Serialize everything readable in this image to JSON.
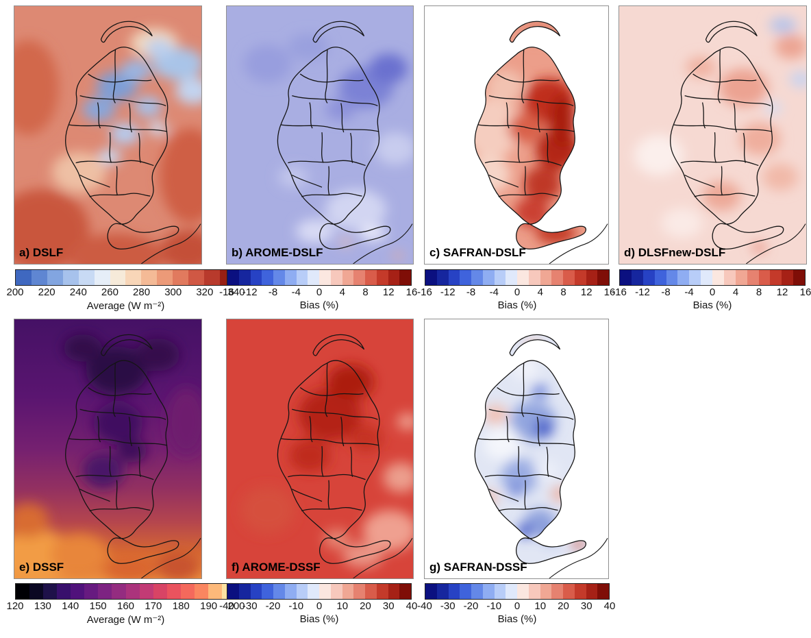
{
  "figure": {
    "panels": [
      {
        "id": "a",
        "label": "a) DSLF"
      },
      {
        "id": "b",
        "label": "b) AROME-DSLF"
      },
      {
        "id": "c",
        "label": "c) SAFRAN-DSLF"
      },
      {
        "id": "d",
        "label": "d) DLSFnew-DSLF"
      },
      {
        "id": "e",
        "label": "e) DSSF"
      },
      {
        "id": "f",
        "label": "f) AROME-DSSF"
      },
      {
        "id": "g",
        "label": "g) SAFRAN-DSSF"
      }
    ],
    "colorbars": [
      {
        "id": "cb-a",
        "label": "Average (W m⁻²)",
        "ticks": [
          "200",
          "220",
          "240",
          "260",
          "280",
          "300",
          "320",
          "340"
        ],
        "colors": [
          "#3f68c0",
          "#5f86d2",
          "#82a5e0",
          "#a7c2ec",
          "#c8daf4",
          "#e6eef8",
          "#f6ead9",
          "#f8d6b8",
          "#f4ba96",
          "#ec9a78",
          "#e17a5e",
          "#d05844",
          "#b83a2c",
          "#971f14"
        ]
      },
      {
        "id": "cb-b",
        "label": "Bias (%)",
        "ticks": [
          "-16",
          "-12",
          "-8",
          "-4",
          "0",
          "4",
          "8",
          "12",
          "16"
        ],
        "colors": [
          "#0b1080",
          "#16269e",
          "#2742c4",
          "#3f63dc",
          "#6488e8",
          "#8fadf2",
          "#b8cdf8",
          "#e0e9fb",
          "#fbe7e0",
          "#f7c8bc",
          "#f0a794",
          "#e68270",
          "#d95c4a",
          "#c43a2a",
          "#a62116",
          "#7f0e07"
        ]
      },
      {
        "id": "cb-c",
        "label": "Bias (%)",
        "ticks": [
          "-16",
          "-12",
          "-8",
          "-4",
          "0",
          "4",
          "8",
          "12",
          "16"
        ],
        "colors": [
          "#0b1080",
          "#16269e",
          "#2742c4",
          "#3f63dc",
          "#6488e8",
          "#8fadf2",
          "#b8cdf8",
          "#e0e9fb",
          "#fbe7e0",
          "#f7c8bc",
          "#f0a794",
          "#e68270",
          "#d95c4a",
          "#c43a2a",
          "#a62116",
          "#7f0e07"
        ]
      },
      {
        "id": "cb-d",
        "label": "Bias (%)",
        "ticks": [
          "-16",
          "-12",
          "-8",
          "-4",
          "0",
          "4",
          "8",
          "12",
          "16"
        ],
        "colors": [
          "#0b1080",
          "#16269e",
          "#2742c4",
          "#3f63dc",
          "#6488e8",
          "#8fadf2",
          "#b8cdf8",
          "#e0e9fb",
          "#fbe7e0",
          "#f7c8bc",
          "#f0a794",
          "#e68270",
          "#d95c4a",
          "#c43a2a",
          "#a62116",
          "#7f0e07"
        ]
      },
      {
        "id": "cb-e",
        "label": "Average (W m⁻²)",
        "ticks": [
          "120",
          "130",
          "140",
          "150",
          "160",
          "170",
          "180",
          "190",
          "200"
        ],
        "colors": [
          "#000004",
          "#0a0722",
          "#1e1149",
          "#38106c",
          "#50127b",
          "#671a80",
          "#7d2382",
          "#942c80",
          "#ab337c",
          "#c23b75",
          "#d84465",
          "#ea535e",
          "#f4695c",
          "#fa8660",
          "#fdb97a",
          "#fbe2a3"
        ]
      },
      {
        "id": "cb-f",
        "label": "Bias (%)",
        "ticks": [
          "-40",
          "-30",
          "-20",
          "-10",
          "0",
          "10",
          "20",
          "30",
          "40"
        ],
        "colors": [
          "#0b1080",
          "#16269e",
          "#2742c4",
          "#3f63dc",
          "#6488e8",
          "#8fadf2",
          "#b8cdf8",
          "#e0e9fb",
          "#fbe7e0",
          "#f7c8bc",
          "#f0a794",
          "#e68270",
          "#d95c4a",
          "#c43a2a",
          "#a62116",
          "#7f0e07"
        ]
      },
      {
        "id": "cb-g",
        "label": "Bias (%)",
        "ticks": [
          "-40",
          "-30",
          "-20",
          "-10",
          "0",
          "10",
          "20",
          "30",
          "40"
        ],
        "colors": [
          "#0b1080",
          "#16269e",
          "#2742c4",
          "#3f63dc",
          "#6488e8",
          "#8fadf2",
          "#b8cdf8",
          "#e0e9fb",
          "#fbe7e0",
          "#f7c8bc",
          "#f0a794",
          "#e68270",
          "#d95c4a",
          "#c43a2a",
          "#a62116",
          "#7f0e07"
        ]
      }
    ]
  },
  "chart_data": [
    {
      "type": "heatmap",
      "panel": "a",
      "title": "DSLF",
      "quantity": "Average (W m⁻²)",
      "colorbar_ticks": [
        200,
        220,
        240,
        260,
        280,
        300,
        320,
        340
      ],
      "range": [
        200,
        340
      ],
      "colormap": "blue-white-red",
      "pattern": "High averages (red, 300-340) over lowlands and coast; low averages (blue, 240-280) over high mountainous terrain in the basin interior and northeast"
    },
    {
      "type": "heatmap",
      "panel": "b",
      "title": "AROME-DSLF",
      "quantity": "Bias (%)",
      "colorbar_ticks": [
        -16,
        -12,
        -8,
        -4,
        0,
        4,
        8,
        12,
        16
      ],
      "range": [
        -16,
        16
      ],
      "colormap": "blue-white-red",
      "pattern": "Mostly negative bias (-4 to -8%) across the whole domain, stronger negative patches northeast, near-zero patches in the south"
    },
    {
      "type": "heatmap",
      "panel": "c",
      "title": "SAFRAN-DSLF",
      "quantity": "Bias (%)",
      "colorbar_ticks": [
        -16,
        -12,
        -8,
        -4,
        0,
        4,
        8,
        12,
        16
      ],
      "range": [
        -16,
        16
      ],
      "colormap": "blue-white-red",
      "pattern": "Field shown only inside basin; positive bias everywhere, strongest (+8 to +16%) on eastern half, weaker (+2 to +4%) on western edge"
    },
    {
      "type": "heatmap",
      "panel": "d",
      "title": "DLSFnew-DSLF",
      "quantity": "Bias (%)",
      "colorbar_ticks": [
        -16,
        -12,
        -8,
        -4,
        0,
        4,
        8,
        12,
        16
      ],
      "range": [
        -16,
        16
      ],
      "colormap": "blue-white-red",
      "pattern": "Small positive bias (0 to +4%) over most of domain with scattered stronger red patches and a few weak blue patches in the northeast"
    },
    {
      "type": "heatmap",
      "panel": "e",
      "title": "DSSF",
      "quantity": "Average (W m⁻²)",
      "colorbar_ticks": [
        120,
        130,
        140,
        150,
        160,
        170,
        180,
        190,
        200
      ],
      "range": [
        120,
        200
      ],
      "colormap": "magma",
      "pattern": "Low averages (dark purple, 130-150) in the north and over the basin interior; high averages (orange, 180-200) along the southern band and southwest corner"
    },
    {
      "type": "heatmap",
      "panel": "f",
      "title": "AROME-DSSF",
      "quantity": "Bias (%)",
      "colorbar_ticks": [
        -40,
        -30,
        -20,
        -10,
        0,
        10,
        20,
        30,
        40
      ],
      "range": [
        -40,
        40
      ],
      "colormap": "blue-white-red",
      "pattern": "Strong positive bias (+20 to +40%) over almost the entire domain, slightly weaker (+10 to +20%) toward the southeast coast"
    },
    {
      "type": "heatmap",
      "panel": "g",
      "title": "SAFRAN-DSSF",
      "quantity": "Bias (%)",
      "colorbar_ticks": [
        -40,
        -30,
        -20,
        -10,
        0,
        10,
        20,
        30,
        40
      ],
      "range": [
        -40,
        40
      ],
      "colormap": "blue-white-red",
      "pattern": "Field shown only inside basin; weak mixed bias, light blue (-5 to -15%) dominant with localized dark blue pockets and scattered light red patches"
    }
  ]
}
